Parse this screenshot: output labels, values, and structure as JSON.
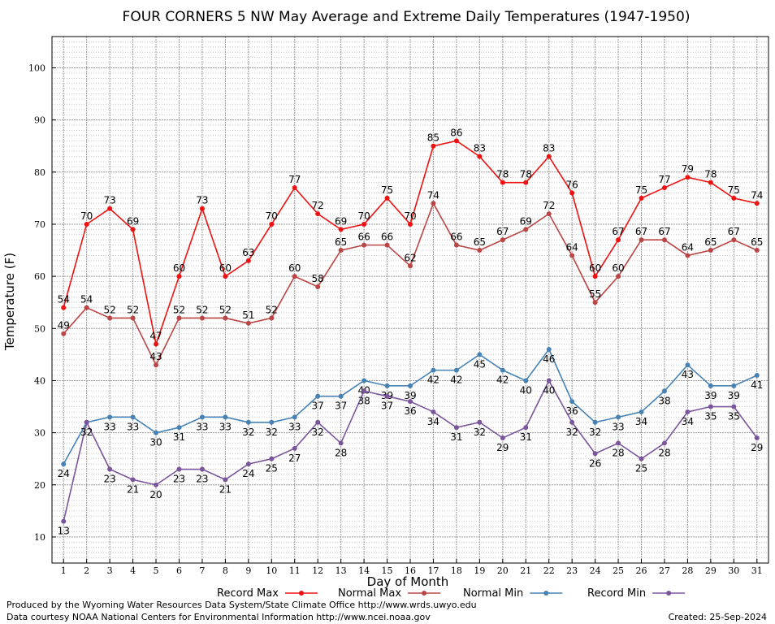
{
  "chart_data": {
    "type": "line",
    "title": "FOUR CORNERS 5 NW May Average and Extreme Daily Temperatures (1947-1950)",
    "xlabel": "Day of Month",
    "ylabel": "Temperature (F)",
    "x": [
      1,
      2,
      3,
      4,
      5,
      6,
      7,
      8,
      9,
      10,
      11,
      12,
      13,
      14,
      15,
      16,
      17,
      18,
      19,
      20,
      21,
      22,
      23,
      24,
      25,
      26,
      27,
      28,
      29,
      30,
      31
    ],
    "xlim": [
      0.5,
      31.5
    ],
    "ylim": [
      5,
      106
    ],
    "yticks": [
      10,
      20,
      30,
      40,
      50,
      60,
      70,
      80,
      90,
      100
    ],
    "grid": true,
    "legend_position": "bottom",
    "series": [
      {
        "name": "Record Max",
        "color": "#ee1111",
        "values": [
          54,
          70,
          73,
          69,
          47,
          60,
          73,
          60,
          63,
          70,
          77,
          72,
          69,
          70,
          75,
          70,
          85,
          86,
          83,
          78,
          78,
          83,
          76,
          60,
          67,
          75,
          77,
          79,
          78,
          75,
          74
        ]
      },
      {
        "name": "Normal Max",
        "color": "#bb4444",
        "values": [
          49,
          54,
          52,
          52,
          43,
          52,
          52,
          52,
          51,
          52,
          60,
          58,
          65,
          66,
          66,
          62,
          74,
          66,
          65,
          67,
          69,
          72,
          64,
          55,
          60,
          67,
          67,
          64,
          65,
          67,
          65
        ]
      },
      {
        "name": "Normal Min",
        "color": "#4682b4",
        "values": [
          24,
          32,
          33,
          33,
          30,
          31,
          33,
          33,
          32,
          32,
          33,
          37,
          37,
          40,
          39,
          39,
          42,
          42,
          45,
          42,
          40,
          46,
          36,
          32,
          33,
          34,
          38,
          43,
          39,
          39,
          41
        ]
      },
      {
        "name": "Record Min",
        "color": "#7b559b",
        "values": [
          13,
          32,
          23,
          21,
          20,
          23,
          23,
          21,
          24,
          25,
          27,
          32,
          28,
          38,
          37,
          36,
          34,
          31,
          32,
          29,
          31,
          40,
          32,
          26,
          28,
          25,
          28,
          34,
          35,
          35,
          29
        ]
      }
    ]
  },
  "footer": {
    "produced_by": "Produced by the Wyoming Water Resources Data System/State Climate Office http://www.wrds.uwyo.edu",
    "data_courtesy": "Data courtesy NOAA National Centers for Environmental Information http://www.ncei.noaa.gov",
    "created": "Created: 25-Sep-2024"
  }
}
